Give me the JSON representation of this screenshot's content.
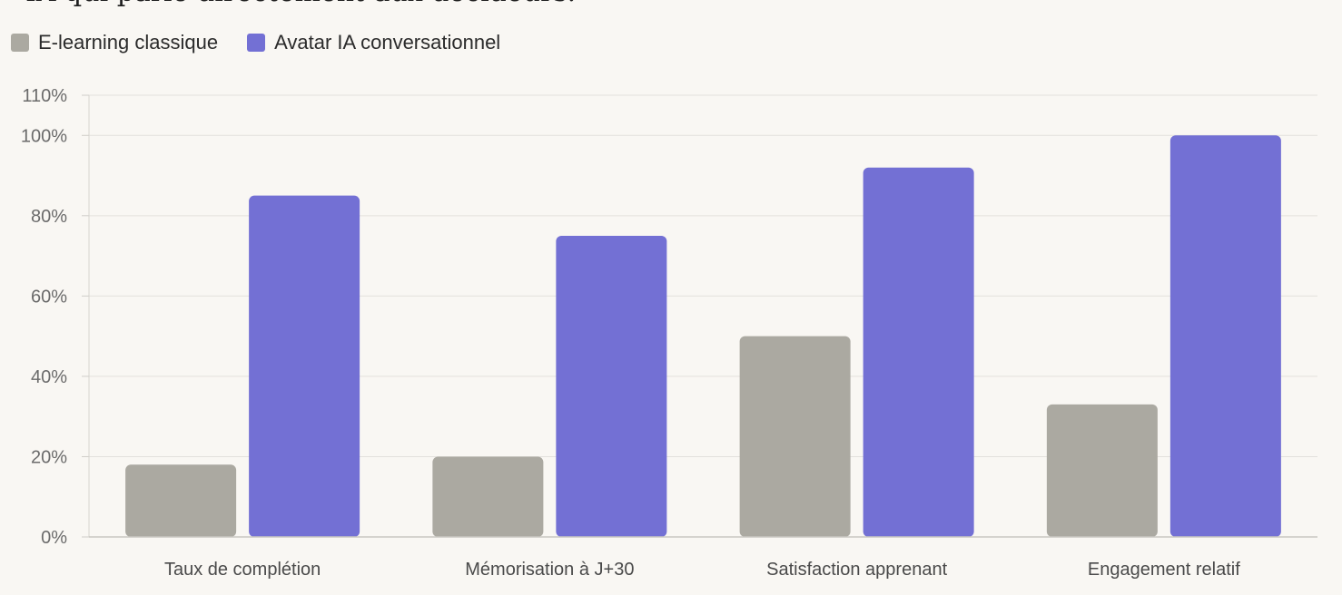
{
  "intro_text": "IA qui parle directement aux décideurs.",
  "chart_data": {
    "type": "bar",
    "categories": [
      "Taux de complétion",
      "Mémorisation à J+30",
      "Satisfaction apprenant",
      "Engagement relatif"
    ],
    "series": [
      {
        "name": "E-learning classique",
        "values": [
          18,
          20,
          50,
          33
        ],
        "color": "#aba9a1"
      },
      {
        "name": "Avatar IA conversationnel",
        "values": [
          85,
          75,
          92,
          100
        ],
        "color": "#7370d4"
      }
    ],
    "ylim": [
      0,
      110
    ],
    "yticks": [
      0,
      20,
      40,
      60,
      80,
      100,
      110
    ],
    "tick_suffix": "%",
    "grid": true,
    "legend": "top-left"
  }
}
